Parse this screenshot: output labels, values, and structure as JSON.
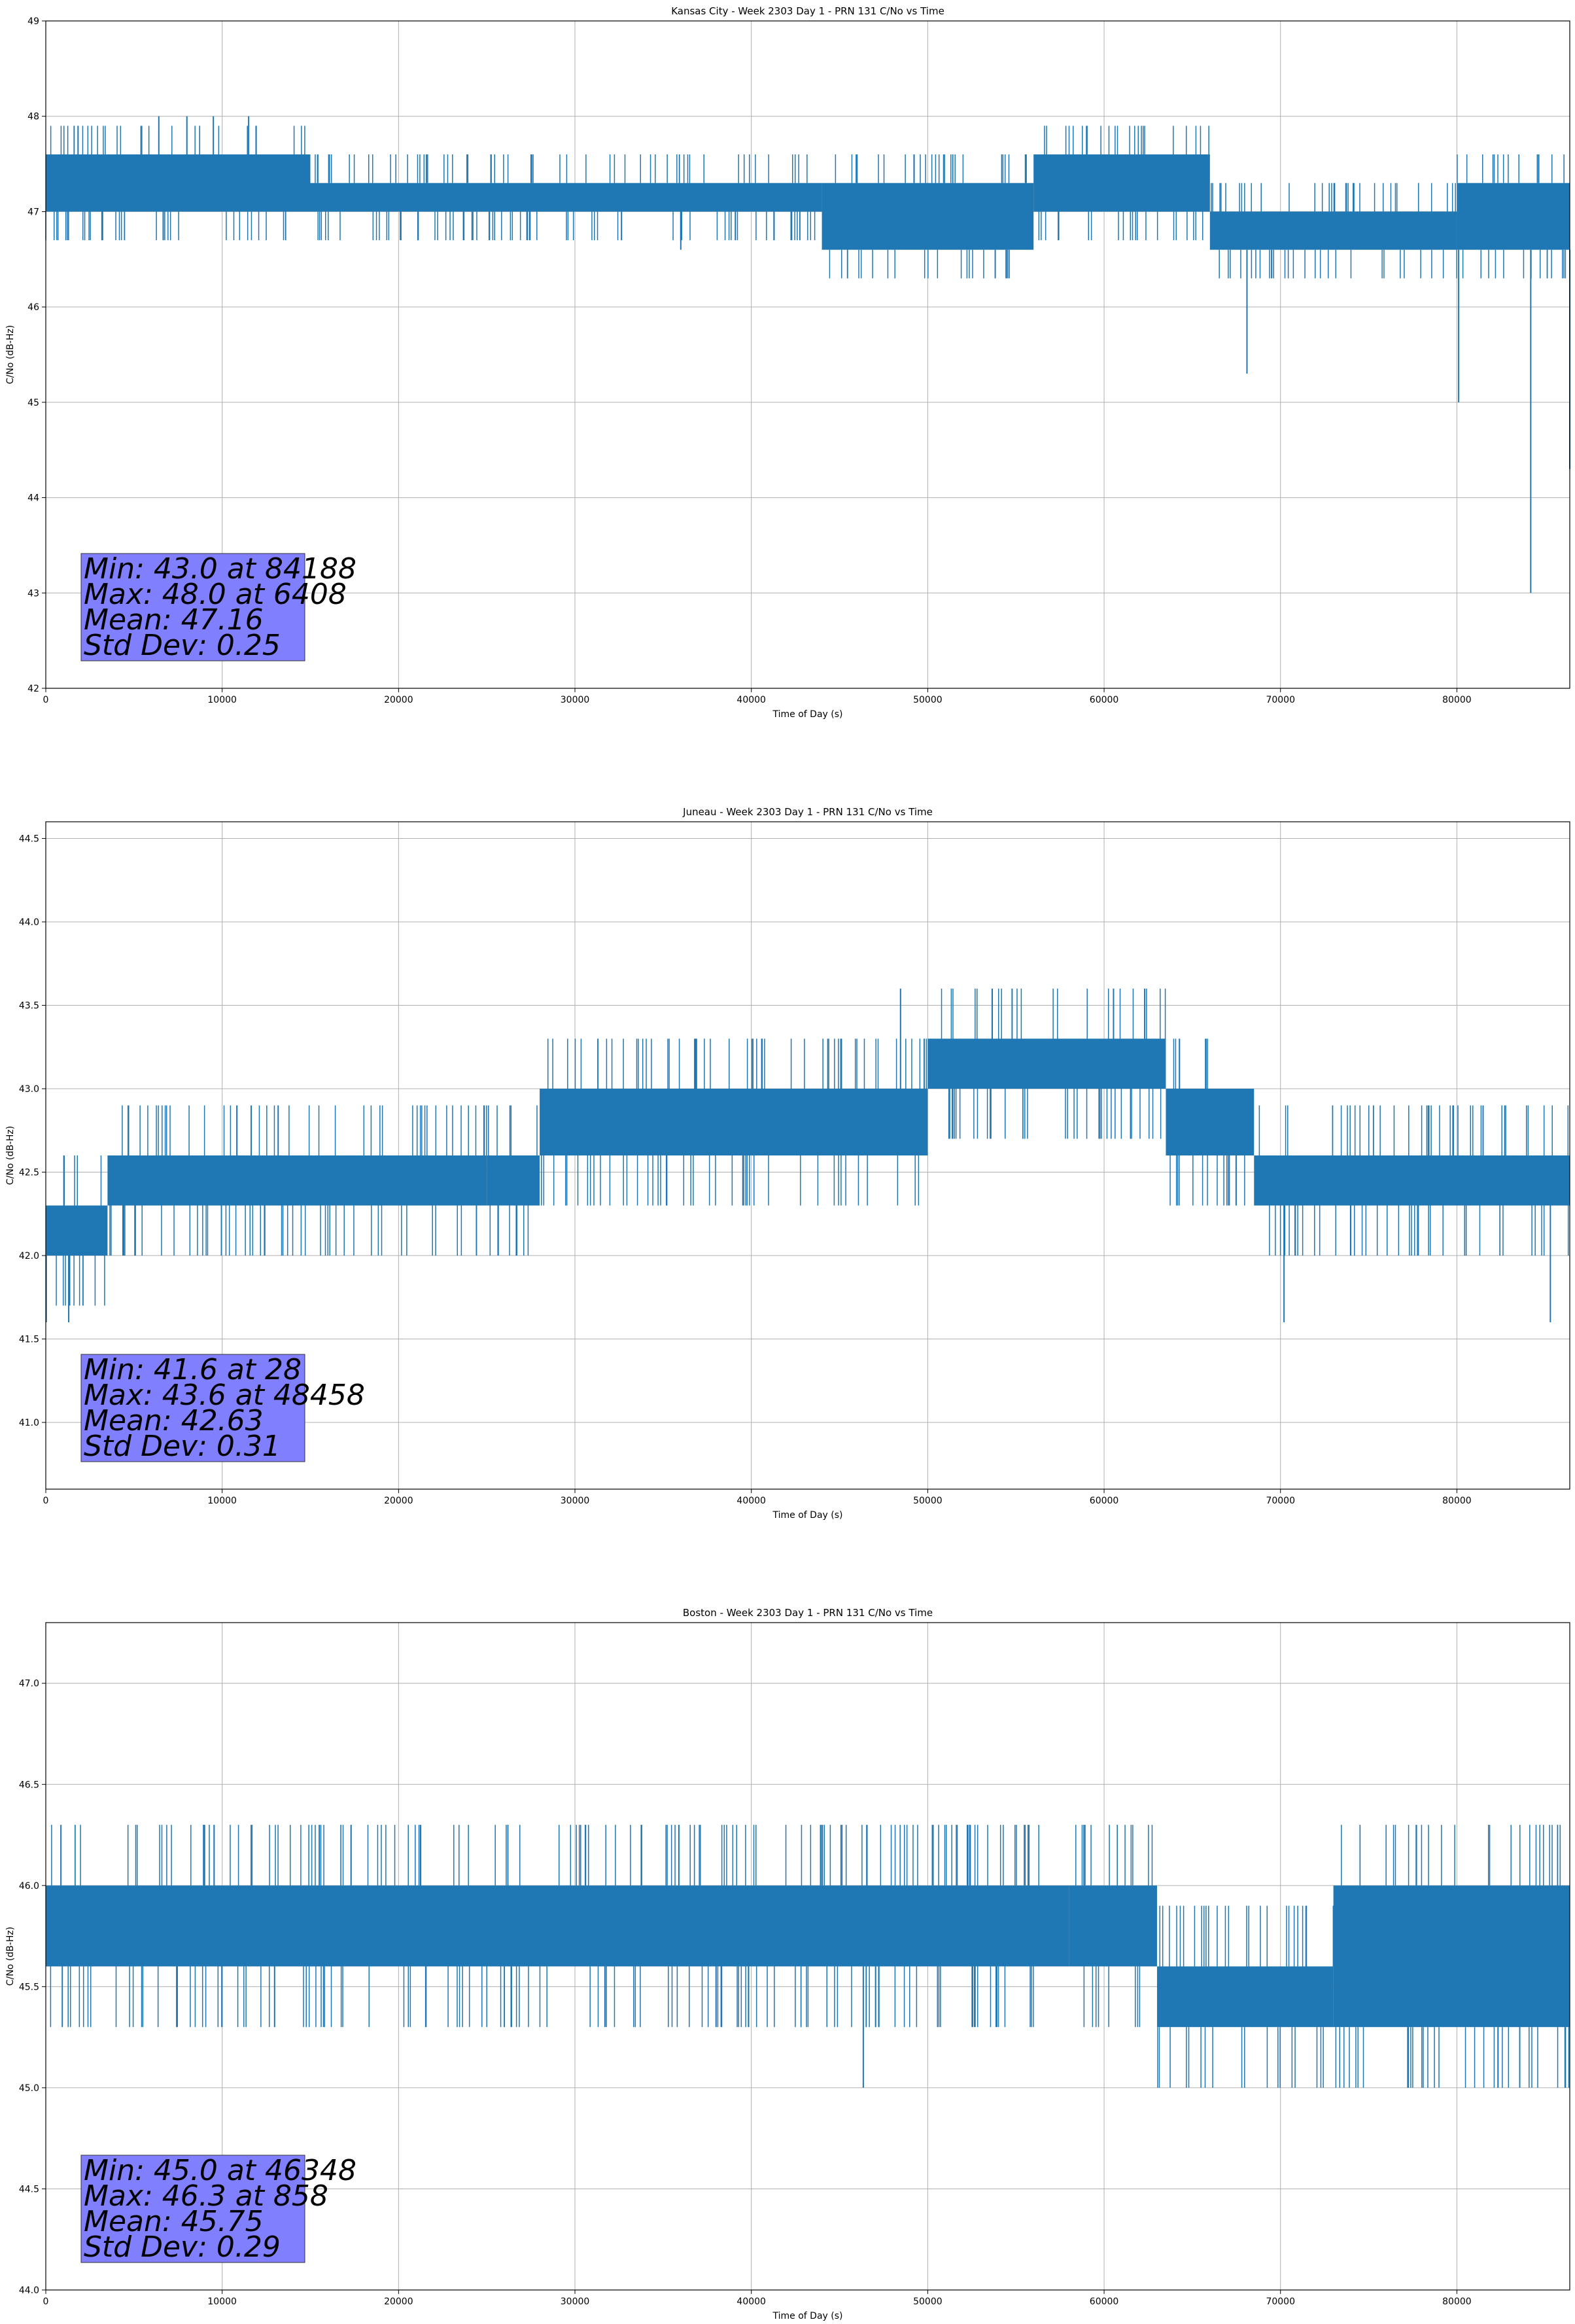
{
  "charts": [
    {
      "title": "Kansas City - Week 2303 Day 1 - PRN 131 C/No vs Time",
      "xlabel": "Time of Day (s)",
      "ylabel": "C/No (dB-Hz)",
      "xlim": [
        0,
        86400
      ],
      "ylim": [
        42,
        49
      ],
      "xticks": [
        0,
        10000,
        20000,
        30000,
        40000,
        50000,
        60000,
        70000,
        80000
      ],
      "yticks": [
        42,
        43,
        44,
        45,
        46,
        47,
        48,
        49
      ],
      "ytick_labels": [
        "42",
        "43",
        "44",
        "45",
        "46",
        "47",
        "48",
        "49"
      ],
      "stats": [
        "Min: 43.0 at 84188",
        "Max: 48.0 at 6408",
        "Mean: 47.16",
        "Std Dev: 0.25"
      ]
    },
    {
      "title": "Juneau - Week 2303 Day 1 - PRN 131 C/No vs Time",
      "xlabel": "Time of Day (s)",
      "ylabel": "C/No (dB-Hz)",
      "xlim": [
        0,
        86400
      ],
      "ylim": [
        40.6,
        44.6
      ],
      "xticks": [
        0,
        10000,
        20000,
        30000,
        40000,
        50000,
        60000,
        70000,
        80000
      ],
      "yticks": [
        41.0,
        41.5,
        42.0,
        42.5,
        43.0,
        43.5,
        44.0,
        44.5
      ],
      "ytick_labels": [
        "41.0",
        "41.5",
        "42.0",
        "42.5",
        "43.0",
        "43.5",
        "44.0",
        "44.5"
      ],
      "stats": [
        "Min: 41.6 at 28",
        "Max: 43.6 at 48458",
        "Mean: 42.63",
        "Std Dev: 0.31"
      ]
    },
    {
      "title": "Boston - Week 2303 Day 1 - PRN 131 C/No vs Time",
      "xlabel": "Time of Day (s)",
      "ylabel": "C/No (dB-Hz)",
      "xlim": [
        0,
        86400
      ],
      "ylim": [
        44.0,
        47.3
      ],
      "xticks": [
        0,
        10000,
        20000,
        30000,
        40000,
        50000,
        60000,
        70000,
        80000
      ],
      "yticks": [
        44.0,
        44.5,
        45.0,
        45.5,
        46.0,
        46.5,
        47.0
      ],
      "ytick_labels": [
        "44.0",
        "44.5",
        "45.0",
        "45.5",
        "46.0",
        "46.5",
        "47.0"
      ],
      "stats": [
        "Min: 45.0 at 46348",
        "Max: 46.3 at 858",
        "Mean: 45.75",
        "Std Dev: 0.29"
      ]
    }
  ],
  "chart_data": [
    {
      "type": "line",
      "title": "Kansas City - Week 2303 Day 1 - PRN 131 C/No vs Time",
      "xlabel": "Time of Day (s)",
      "ylabel": "C/No (dB-Hz)",
      "xlim": [
        0,
        86400
      ],
      "ylim": [
        42,
        49
      ],
      "grid": true,
      "series_color": "#1f77b4",
      "stats_box_color": "#8080ff",
      "segments": [
        {
          "x": [
            0,
            15000
          ],
          "low": 47.0,
          "high": 47.6
        },
        {
          "x": [
            15000,
            44000
          ],
          "low": 47.0,
          "high": 47.3
        },
        {
          "x": [
            44000,
            56000
          ],
          "low": 46.6,
          "high": 47.3
        },
        {
          "x": [
            56000,
            66000
          ],
          "low": 47.0,
          "high": 47.6
        },
        {
          "x": [
            66000,
            80000
          ],
          "low": 46.6,
          "high": 47.0
        },
        {
          "x": [
            80000,
            86400
          ],
          "low": 46.6,
          "high": 47.3
        }
      ],
      "spikes": [
        {
          "x": 36000,
          "y": 46.6
        },
        {
          "x": 68100,
          "y": 45.3
        },
        {
          "x": 80100,
          "y": 45.0
        },
        {
          "x": 84188,
          "y": 43.0
        },
        {
          "x": 86400,
          "y": 44.3
        },
        {
          "x": 6408,
          "y": 48.0
        },
        {
          "x": 8000,
          "y": 48.0
        },
        {
          "x": 9500,
          "y": 48.0
        },
        {
          "x": 11500,
          "y": 48.0
        }
      ],
      "stats": {
        "min": 43.0,
        "min_at": 84188,
        "max": 48.0,
        "max_at": 6408,
        "mean": 47.16,
        "std_dev": 0.25
      }
    },
    {
      "type": "line",
      "title": "Juneau - Week 2303 Day 1 - PRN 131 C/No vs Time",
      "xlabel": "Time of Day (s)",
      "ylabel": "C/No (dB-Hz)",
      "xlim": [
        0,
        86400
      ],
      "ylim": [
        40.6,
        44.6
      ],
      "grid": true,
      "series_color": "#1f77b4",
      "stats_box_color": "#8080ff",
      "segments": [
        {
          "x": [
            0,
            3500
          ],
          "low": 42.0,
          "high": 42.3
        },
        {
          "x": [
            3500,
            25000
          ],
          "low": 42.3,
          "high": 42.6
        },
        {
          "x": [
            25000,
            28000
          ],
          "low": 42.3,
          "high": 42.6
        },
        {
          "x": [
            28000,
            50000
          ],
          "low": 42.6,
          "high": 43.0
        },
        {
          "x": [
            50000,
            63500
          ],
          "low": 43.0,
          "high": 43.3
        },
        {
          "x": [
            63500,
            68500
          ],
          "low": 42.6,
          "high": 43.0
        },
        {
          "x": [
            68500,
            86400
          ],
          "low": 42.3,
          "high": 42.6
        }
      ],
      "spikes": [
        {
          "x": 28,
          "y": 41.6
        },
        {
          "x": 1300,
          "y": 41.6
        },
        {
          "x": 70200,
          "y": 41.6
        },
        {
          "x": 85300,
          "y": 41.6
        },
        {
          "x": 48458,
          "y": 43.6
        },
        {
          "x": 62300,
          "y": 43.6
        }
      ],
      "stats": {
        "min": 41.6,
        "min_at": 28,
        "max": 43.6,
        "max_at": 48458,
        "mean": 42.63,
        "std_dev": 0.31
      }
    },
    {
      "type": "line",
      "title": "Boston - Week 2303 Day 1 - PRN 131 C/No vs Time",
      "xlabel": "Time of Day (s)",
      "ylabel": "C/No (dB-Hz)",
      "xlim": [
        0,
        86400
      ],
      "ylim": [
        44.0,
        47.3
      ],
      "grid": true,
      "series_color": "#1f77b4",
      "stats_box_color": "#8080ff",
      "segments": [
        {
          "x": [
            0,
            16000
          ],
          "low": 45.6,
          "high": 46.0
        },
        {
          "x": [
            16000,
            58000
          ],
          "low": 45.6,
          "high": 46.0
        },
        {
          "x": [
            58000,
            63000
          ],
          "low": 45.6,
          "high": 46.0
        },
        {
          "x": [
            63000,
            73000
          ],
          "low": 45.3,
          "high": 45.6
        },
        {
          "x": [
            73000,
            86400
          ],
          "low": 45.3,
          "high": 46.0
        }
      ],
      "spikes": [
        {
          "x": 46348,
          "y": 45.0
        },
        {
          "x": 858,
          "y": 46.3
        },
        {
          "x": 9000,
          "y": 46.3
        },
        {
          "x": 26400,
          "y": 45.3
        },
        {
          "x": 31700,
          "y": 45.3
        },
        {
          "x": 38000,
          "y": 45.3
        }
      ],
      "stats": {
        "min": 45.0,
        "min_at": 46348,
        "max": 46.3,
        "max_at": 858,
        "mean": 45.75,
        "std_dev": 0.29
      }
    }
  ]
}
